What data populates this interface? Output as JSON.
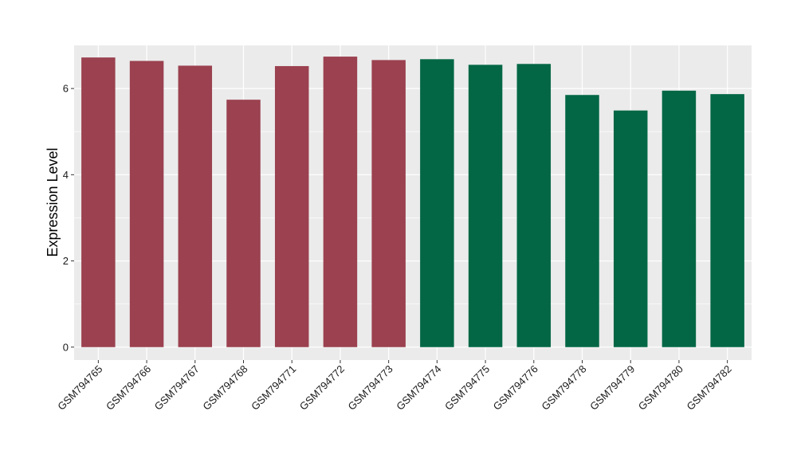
{
  "chart_data": {
    "type": "bar",
    "title": "",
    "xlabel": "",
    "ylabel": "Expression Level",
    "ylim": [
      -0.3,
      7.0
    ],
    "yticks": [
      0,
      2,
      4,
      6
    ],
    "grid": true,
    "legend": "none",
    "categories": [
      "GSM794765",
      "GSM794766",
      "GSM794767",
      "GSM794768",
      "GSM794771",
      "GSM794772",
      "GSM794773",
      "GSM794774",
      "GSM794775",
      "GSM794776",
      "GSM794778",
      "GSM794779",
      "GSM794780",
      "GSM794782"
    ],
    "values": [
      6.72,
      6.64,
      6.53,
      5.74,
      6.52,
      6.74,
      6.66,
      6.68,
      6.55,
      6.57,
      5.85,
      5.49,
      5.95,
      5.87
    ],
    "groups": [
      "g1",
      "g1",
      "g1",
      "g1",
      "g1",
      "g1",
      "g1",
      "g2",
      "g2",
      "g2",
      "g2",
      "g2",
      "g2",
      "g2"
    ],
    "group_colors": {
      "g1": "#9B4150",
      "g2": "#036745"
    },
    "panel_background": "#EBEBEB",
    "grid_color": "#FFFFFF"
  }
}
